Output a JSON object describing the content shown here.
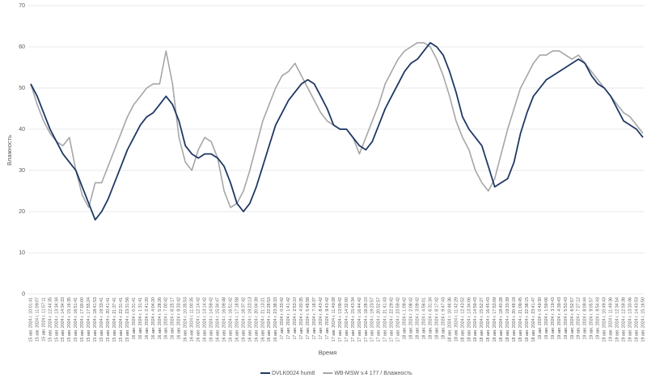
{
  "chart_data": {
    "type": "line",
    "y_label": "Влажность",
    "x_label": "Время",
    "ylim": [
      0,
      70
    ],
    "yticks": [
      0,
      10,
      20,
      30,
      40,
      50,
      60,
      70
    ],
    "grid": true,
    "categories": [
      "15 авг. 2024 г. 10:01:41",
      "15 авг. 2024 г. 11:09:07",
      "15 авг. 2024 г. 11:57:11",
      "15 авг. 2024 г. 12:44:35",
      "15 авг. 2024 г. 13:34:34",
      "15 авг. 2024 г. 14:34:33",
      "15 авг. 2024 г. 15:16:35",
      "15 авг. 2024 г. 16:51:41",
      "15 авг. 2024 г. 17:00:00",
      "15 авг. 2024 г. 17:55:24",
      "15 авг. 2024 г. 18:41:53",
      "15 авг. 2024 г. 19:33:41",
      "15 авг. 2024 г. 20:41:41",
      "15 авг. 2024 г. 21:37:41",
      "15 авг. 2024 г. 22:31:41",
      "15 авг. 2024 г. 23:31:56",
      "16 авг. 2024 г. 0:31:41",
      "16 авг. 2024 г. 1:31:41",
      "16 авг. 2024 г. 2:41:20",
      "16 авг. 2024 г. 4:04:20",
      "16 авг. 2024 г. 5:28:26",
      "16 авг. 2024 г. 7:00:42",
      "16 авг. 2024 г. 8:25:17",
      "16 авг. 2024 г. 9:33:42",
      "16 авг. 2024 г. 10:35:53",
      "16 авг. 2024 г. 11:00:35",
      "16 авг. 2024 г. 12:14:42",
      "16 авг. 2024 г. 13:14:42",
      "16 авг. 2024 г. 14:59:42",
      "16 авг. 2024 г. 15:34:47",
      "16 авг. 2024 г. 16:09:48",
      "16 авг. 2024 г. 16:51:42",
      "16 авг. 2024 г. 17:18:58",
      "16 авг. 2024 г. 18:37:42",
      "16 авг. 2024 г. 19:23:13",
      "16 авг. 2024 г. 20:04:39",
      "16 авг. 2024 г. 21:13:21",
      "16 авг. 2024 г. 22:28:53",
      "16 авг. 2024 г. 23:38:33",
      "17 авг. 2024 г. 0:33:42",
      "17 авг. 2024 г. 1:41:42",
      "17 авг. 2024 г. 2:53:10",
      "17 авг. 2024 г. 4:20:35",
      "17 авг. 2024 г. 5:48:58",
      "17 авг. 2024 г. 7:18:37",
      "17 авг. 2024 г. 8:43:42",
      "17 авг. 2024 г. 9:43:42",
      "17 авг. 2024 г. 11:49:28",
      "17 авг. 2024 г. 13:09:42",
      "17 авг. 2024 г. 14:32:00",
      "17 авг. 2024 г. 15:43:34",
      "17 авг. 2024 г. 16:44:42",
      "17 авг. 2024 г. 18:28:10",
      "17 авг. 2024 г. 19:23:57",
      "17 авг. 2024 г. 20:52:57",
      "17 авг. 2024 г. 21:41:43",
      "17 авг. 2024 г. 22:29:42",
      "17 авг. 2024 г. 23:59:42",
      "18 авг. 2024 г. 1:09:42",
      "18 авг. 2024 г. 2:08:42",
      "18 авг. 2024 г. 3:09:42",
      "18 авг. 2024 г. 4:56:01",
      "18 авг. 2024 г. 6:31:34",
      "18 авг. 2024 г. 8:17:42",
      "18 авг. 2024 г. 9:47:43",
      "18 авг. 2024 г. 10:46:36",
      "18 авг. 2024 г. 11:42:29",
      "18 авг. 2024 г. 12:43:52",
      "18 авг. 2024 г. 13:34:06",
      "18 авг. 2024 г. 14:59:43",
      "18 авг. 2024 г. 15:52:27",
      "18 авг. 2024 г. 16:45:43",
      "18 авг. 2024 г. 17:53:09",
      "18 авг. 2024 г. 18:40:28",
      "18 авг. 2024 г. 19:33:39",
      "18 авг. 2024 г. 20:48:18",
      "18 авг. 2024 г. 21:09:45",
      "18 авг. 2024 г. 22:38:15",
      "18 авг. 2024 г. 23:41:47",
      "19 авг. 2024 г. 0:49:30",
      "19 авг. 2024 г. 1:59:06",
      "19 авг. 2024 г. 3:19:43",
      "19 авг. 2024 г. 4:39:43",
      "19 авг. 2024 г. 5:53:43",
      "19 авг. 2024 г. 6:52:57",
      "19 авг. 2024 г. 7:27:12",
      "19 авг. 2024 г. 8:09:44",
      "19 авг. 2024 г. 9:05:57",
      "19 авг. 2024 г. 9:54:43",
      "19 авг. 2024 г. 10:49:43",
      "19 авг. 2024 г. 11:49:36",
      "19 авг. 2024 г. 12:34:54",
      "19 авг. 2024 г. 12:59:38",
      "19 авг. 2024 г. 13:33:46",
      "19 авг. 2024 г. 14:43:53",
      "19 авг. 2024 г. 15:16:50"
    ],
    "series": [
      {
        "name": "DVLK0024 hum8",
        "color": "#1f3864",
        "values": [
          51,
          48,
          44,
          40,
          37,
          34,
          32,
          30,
          26,
          22,
          18,
          20,
          23,
          27,
          31,
          35,
          38,
          41,
          43,
          44,
          46,
          48,
          46,
          42,
          36,
          34,
          33,
          34,
          34,
          33,
          31,
          27,
          22,
          20,
          22,
          26,
          31,
          36,
          41,
          44,
          47,
          49,
          51,
          52,
          51,
          48,
          45,
          41,
          40,
          40,
          38,
          36,
          35,
          37,
          41,
          45,
          48,
          51,
          54,
          56,
          57,
          59,
          61,
          60,
          58,
          54,
          49,
          43,
          40,
          38,
          36,
          31,
          26,
          27,
          28,
          32,
          39,
          44,
          48,
          50,
          52,
          53,
          54,
          55,
          56,
          57,
          56,
          53,
          51,
          50,
          48,
          45,
          42,
          41,
          40,
          38
        ]
      },
      {
        "name": "WB-MSW v.4 177 / Влажность",
        "color": "#a6a6a6",
        "values": [
          51,
          46,
          42,
          39,
          37,
          36,
          38,
          30,
          24,
          21,
          27,
          27,
          31,
          35,
          39,
          43,
          46,
          48,
          50,
          51,
          51,
          59,
          51,
          38,
          32,
          30,
          35,
          38,
          37,
          33,
          25,
          21,
          22,
          25,
          30,
          36,
          42,
          46,
          50,
          53,
          54,
          56,
          53,
          50,
          47,
          44,
          42,
          41,
          40,
          40,
          38,
          34,
          38,
          42,
          46,
          51,
          54,
          57,
          59,
          60,
          61,
          61,
          60,
          57,
          53,
          48,
          42,
          38,
          35,
          30,
          27,
          25,
          28,
          34,
          40,
          45,
          50,
          53,
          56,
          58,
          58,
          59,
          59,
          58,
          57,
          58,
          56,
          54,
          52,
          50,
          48,
          46,
          44,
          43,
          41,
          39
        ]
      }
    ]
  }
}
